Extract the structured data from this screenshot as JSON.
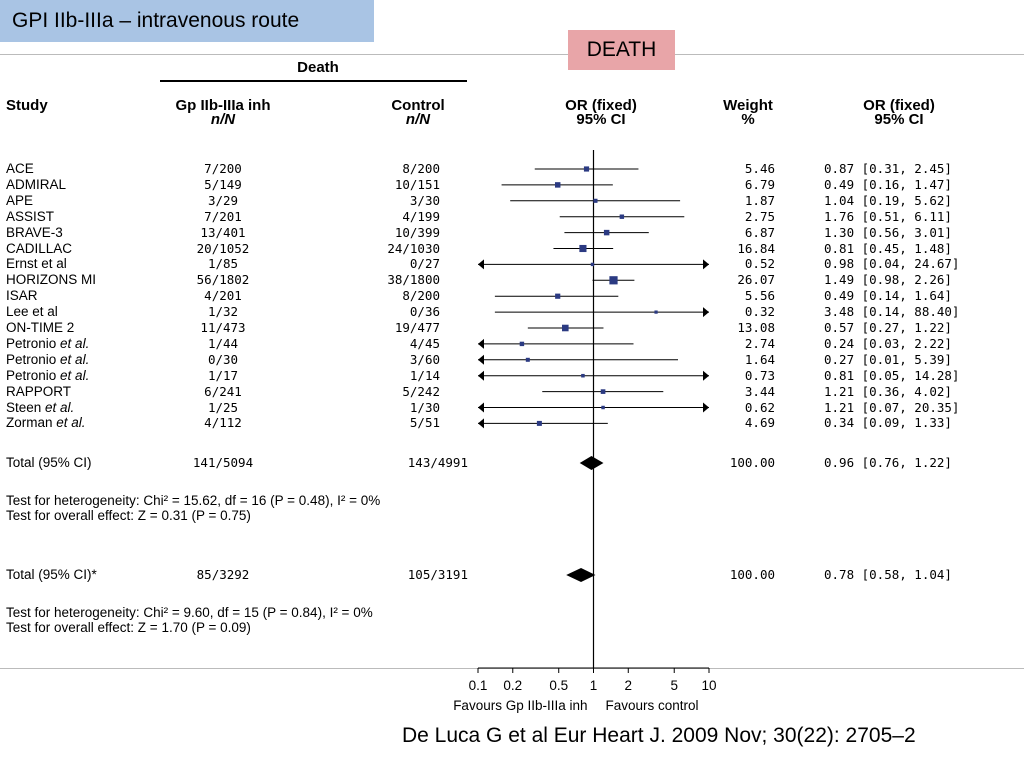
{
  "slide_title": "GPI IIb-IIIa – intravenous route",
  "death_label": "DEATH",
  "citation": "De Luca G et al Eur Heart J. 2009 Nov; 30(22): 2705–2",
  "headers": {
    "group": "Death",
    "study": "Study",
    "gp_line1": "Gp IIb-IIIa inh",
    "gp_line2": "n/N",
    "ctrl_line1": "Control",
    "ctrl_line2": "n/N",
    "or_plot_line1": "OR (fixed)",
    "or_plot_line2": "95% CI",
    "weight_line1": "Weight",
    "weight_line2": "%",
    "or_text_line1": "OR (fixed)",
    "or_text_line2": "95% CI"
  },
  "chart_data": {
    "type": "forest",
    "x_scale": "log",
    "xlim": [
      0.1,
      10
    ],
    "ticks": [
      "0.1",
      "0.2",
      "0.5",
      "1",
      "2",
      "5",
      "10"
    ],
    "favours_left": "Favours Gp IIb-IIIa inh",
    "favours_right": "Favours control",
    "studies": [
      {
        "name": "ACE",
        "italic": "",
        "gp": "7/200",
        "ctrl": "8/200",
        "weight": "5.46",
        "or": 0.87,
        "lo": 0.31,
        "hi": 2.45,
        "or_text": "0.87 [0.31, 2.45]"
      },
      {
        "name": "ADMIRAL",
        "italic": "",
        "gp": "5/149",
        "ctrl": "10/151",
        "weight": "6.79",
        "or": 0.49,
        "lo": 0.16,
        "hi": 1.47,
        "or_text": "0.49 [0.16, 1.47]"
      },
      {
        "name": "APE",
        "italic": "",
        "gp": "3/29",
        "ctrl": "3/30",
        "weight": "1.87",
        "or": 1.04,
        "lo": 0.19,
        "hi": 5.62,
        "or_text": "1.04 [0.19, 5.62]"
      },
      {
        "name": "ASSIST",
        "italic": "",
        "gp": "7/201",
        "ctrl": "4/199",
        "weight": "2.75",
        "or": 1.76,
        "lo": 0.51,
        "hi": 6.11,
        "or_text": "1.76 [0.51, 6.11]"
      },
      {
        "name": "BRAVE-3",
        "italic": "",
        "gp": "13/401",
        "ctrl": "10/399",
        "weight": "6.87",
        "or": 1.3,
        "lo": 0.56,
        "hi": 3.01,
        "or_text": "1.30 [0.56, 3.01]"
      },
      {
        "name": "CADILLAC",
        "italic": "",
        "gp": "20/1052",
        "ctrl": "24/1030",
        "weight": "16.84",
        "or": 0.81,
        "lo": 0.45,
        "hi": 1.48,
        "or_text": "0.81 [0.45, 1.48]"
      },
      {
        "name": "Ernst et al",
        "italic": "",
        "gp": "1/85",
        "ctrl": "0/27",
        "weight": "0.52",
        "or": 0.98,
        "lo": 0.04,
        "hi": 24.67,
        "or_text": "0.98 [0.04, 24.67]"
      },
      {
        "name": "HORIZONS MI",
        "italic": "",
        "gp": "56/1802",
        "ctrl": "38/1800",
        "weight": "26.07",
        "or": 1.49,
        "lo": 0.98,
        "hi": 2.26,
        "or_text": "1.49 [0.98, 2.26]"
      },
      {
        "name": "ISAR",
        "italic": "",
        "gp": "4/201",
        "ctrl": "8/200",
        "weight": "5.56",
        "or": 0.49,
        "lo": 0.14,
        "hi": 1.64,
        "or_text": "0.49 [0.14, 1.64]"
      },
      {
        "name": "Lee et al",
        "italic": "",
        "gp": "1/32",
        "ctrl": "0/36",
        "weight": "0.32",
        "or": 3.48,
        "lo": 0.14,
        "hi": 88.4,
        "or_text": "3.48 [0.14, 88.40]"
      },
      {
        "name": "ON-TIME 2",
        "italic": "",
        "gp": "11/473",
        "ctrl": "19/477",
        "weight": "13.08",
        "or": 0.57,
        "lo": 0.27,
        "hi": 1.22,
        "or_text": "0.57 [0.27, 1.22]"
      },
      {
        "name": "Petronio ",
        "italic": "et al.",
        "gp": "1/44",
        "ctrl": "4/45",
        "weight": "2.74",
        "or": 0.24,
        "lo": 0.03,
        "hi": 2.22,
        "or_text": "0.24 [0.03, 2.22]"
      },
      {
        "name": "Petronio ",
        "italic": "et al.",
        "gp": "0/30",
        "ctrl": "3/60",
        "weight": "1.64",
        "or": 0.27,
        "lo": 0.01,
        "hi": 5.39,
        "or_text": "0.27 [0.01, 5.39]"
      },
      {
        "name": "Petronio ",
        "italic": "et al.",
        "gp": "1/17",
        "ctrl": "1/14",
        "weight": "0.73",
        "or": 0.81,
        "lo": 0.05,
        "hi": 14.28,
        "or_text": "0.81 [0.05, 14.28]"
      },
      {
        "name": "RAPPORT",
        "italic": "",
        "gp": "6/241",
        "ctrl": "5/242",
        "weight": "3.44",
        "or": 1.21,
        "lo": 0.36,
        "hi": 4.02,
        "or_text": "1.21 [0.36, 4.02]"
      },
      {
        "name": "Steen ",
        "italic": "et al.",
        "gp": "1/25",
        "ctrl": "1/30",
        "weight": "0.62",
        "or": 1.21,
        "lo": 0.07,
        "hi": 20.35,
        "or_text": "1.21 [0.07, 20.35]"
      },
      {
        "name": "Zorman ",
        "italic": "et al.",
        "gp": "4/112",
        "ctrl": "5/51",
        "weight": "4.69",
        "or": 0.34,
        "lo": 0.09,
        "hi": 1.33,
        "or_text": "0.34 [0.09, 1.33]"
      }
    ],
    "totals": [
      {
        "label": "Total (95% CI)",
        "gp": "141/5094",
        "ctrl": "143/4991",
        "weight": "100.00",
        "or": 0.96,
        "lo": 0.76,
        "hi": 1.22,
        "or_text": "0.96 [0.76, 1.22]",
        "het": "Test for heterogeneity: Chi² = 15.62, df = 16 (P = 0.48), I² = 0%",
        "overall": "Test for overall effect: Z = 0.31 (P = 0.75)"
      },
      {
        "label": "Total (95% CI)*",
        "gp": "85/3292",
        "ctrl": "105/3191",
        "weight": "100.00",
        "or": 0.78,
        "lo": 0.58,
        "hi": 1.04,
        "or_text": "0.78 [0.58, 1.04]",
        "het": "Test for heterogeneity: Chi² = 9.60, df = 15 (P = 0.84), I² = 0%",
        "overall": "Test for overall effect: Z = 1.70 (P = 0.09)"
      }
    ]
  }
}
